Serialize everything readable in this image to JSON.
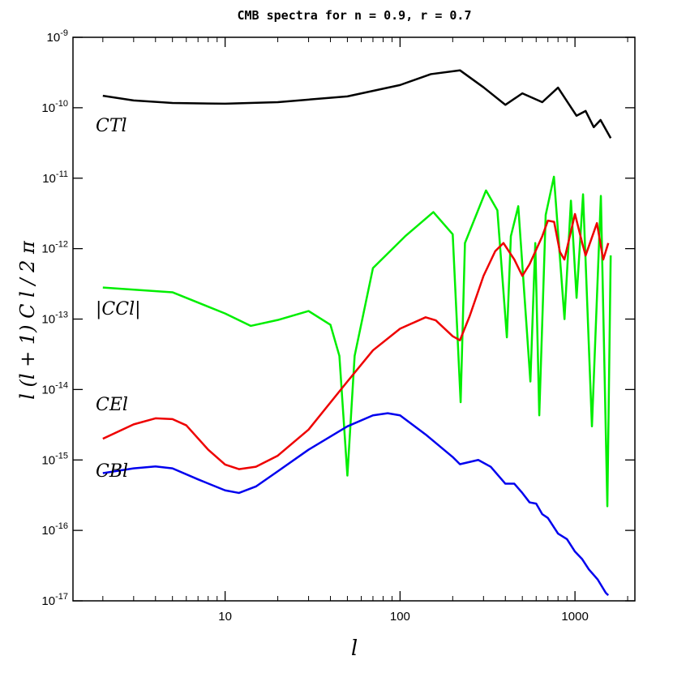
{
  "chart_data": {
    "type": "line",
    "title": "CMB spectra for n = 0.9, r = 0.7",
    "x_label": "l",
    "y_label": "l (l + 1) C l / 2 π",
    "xlog": true,
    "ylog": true,
    "xlim": [
      1.35,
      2200
    ],
    "ylim": [
      1e-17,
      1e-09
    ],
    "xticks": [
      10,
      100,
      1000
    ],
    "xminorticks": [
      2,
      3,
      4,
      5,
      6,
      7,
      8,
      9,
      20,
      30,
      40,
      50,
      60,
      70,
      80,
      90,
      200,
      300,
      400,
      500,
      600,
      700,
      800,
      900,
      2000
    ],
    "yticks": [
      {
        "value": 1e-09,
        "label": "10",
        "exponent": "-9"
      },
      {
        "value": 1e-10,
        "label": "10",
        "exponent": "-10"
      },
      {
        "value": 1e-11,
        "label": "10",
        "exponent": "-11"
      },
      {
        "value": 1e-12,
        "label": "10",
        "exponent": "-12"
      },
      {
        "value": 1e-13,
        "label": "10",
        "exponent": "-13"
      },
      {
        "value": 1e-14,
        "label": "10",
        "exponent": "-14"
      },
      {
        "value": 1e-15,
        "label": "10",
        "exponent": "-15"
      },
      {
        "value": 1e-16,
        "label": "10",
        "exponent": "-16"
      },
      {
        "value": 1e-17,
        "label": "10",
        "exponent": "-17"
      }
    ],
    "series": [
      {
        "name": "CTl",
        "color": "#000000",
        "x": [
          2,
          3,
          5,
          10,
          20,
          50,
          100,
          150,
          220,
          300,
          400,
          500,
          650,
          800,
          1020,
          1150,
          1280,
          1400,
          1600
        ],
        "values": [
          1.48e-10,
          1.27e-10,
          1.17e-10,
          1.14e-10,
          1.2e-10,
          1.45e-10,
          2.1e-10,
          3e-10,
          3.4e-10,
          1.95e-10,
          1.1e-10,
          1.6e-10,
          1.2e-10,
          1.93e-10,
          7.7e-11,
          9e-11,
          5.3e-11,
          6.7e-11,
          3.7e-11
        ]
      },
      {
        "name": "|CCl|",
        "color": "#00ee00",
        "x": [
          2,
          5,
          10,
          14,
          20,
          30,
          40,
          45,
          50,
          55,
          70,
          107,
          155,
          200,
          222,
          235,
          310,
          360,
          408,
          430,
          474,
          556,
          593,
          625,
          680,
          758,
          871,
          948,
          1021,
          1112,
          1250,
          1406,
          1531,
          1600
        ],
        "values": [
          2.8e-13,
          2.4e-13,
          1.2e-13,
          8e-14,
          9.7e-14,
          1.3e-13,
          8.3e-14,
          3e-14,
          6e-16,
          3e-14,
          5.3e-13,
          1.5e-12,
          3.3e-12,
          1.6e-12,
          6.6e-15,
          1.2e-12,
          6.7e-12,
          3.5e-12,
          5.5e-14,
          1.5e-12,
          4e-12,
          1.3e-14,
          1.2e-12,
          4.3e-15,
          3e-12,
          1.05e-11,
          1e-13,
          4.8e-12,
          2e-13,
          5.9e-12,
          3e-15,
          5.6e-12,
          2.2e-16,
          8e-13
        ]
      },
      {
        "name": "CEl",
        "color": "#ee0000",
        "x": [
          2,
          3,
          4,
          5,
          6,
          8,
          10,
          12,
          15,
          20,
          30,
          50,
          70,
          100,
          140,
          160,
          200,
          220,
          250,
          300,
          350,
          390,
          450,
          500,
          550,
          650,
          700,
          760,
          820,
          870,
          1000,
          1100,
          1150,
          1335,
          1450,
          1550
        ],
        "values": [
          2e-15,
          3.2e-15,
          3.9e-15,
          3.8e-15,
          3.1e-15,
          1.4e-15,
          8.6e-16,
          7.4e-16,
          8e-16,
          1.15e-15,
          2.7e-15,
          1.3e-14,
          3.6e-14,
          7.3e-14,
          1.06e-13,
          9.6e-14,
          5.7e-14,
          5e-14,
          1.1e-13,
          4.1e-13,
          9.2e-13,
          1.2e-12,
          7e-13,
          4.1e-13,
          6e-13,
          1.5e-12,
          2.5e-12,
          2.4e-12,
          9e-13,
          7e-13,
          3.1e-12,
          1.2e-12,
          8e-13,
          2.3e-12,
          7e-13,
          1.2e-12
        ]
      },
      {
        "name": "CBl",
        "color": "#0000ee",
        "x": [
          2,
          3,
          4,
          5,
          7,
          10,
          12,
          15,
          20,
          30,
          50,
          70,
          85,
          100,
          140,
          200,
          220,
          280,
          330,
          400,
          450,
          500,
          550,
          600,
          650,
          700,
          800,
          900,
          1000,
          1100,
          1200,
          1350,
          1500,
          1550
        ],
        "values": [
          6.5e-16,
          7.6e-16,
          8.1e-16,
          7.6e-16,
          5.3e-16,
          3.7e-16,
          3.4e-16,
          4.2e-16,
          6.9e-16,
          1.4e-15,
          3e-15,
          4.3e-15,
          4.6e-15,
          4.3e-15,
          2.3e-15,
          1.1e-15,
          8.7e-16,
          1e-15,
          8e-16,
          4.6e-16,
          4.6e-16,
          3.4e-16,
          2.5e-16,
          2.4e-16,
          1.7e-16,
          1.5e-16,
          9e-17,
          7.5e-17,
          5e-17,
          3.9e-17,
          2.8e-17,
          2e-17,
          1.3e-17,
          1.2e-17
        ]
      }
    ]
  }
}
